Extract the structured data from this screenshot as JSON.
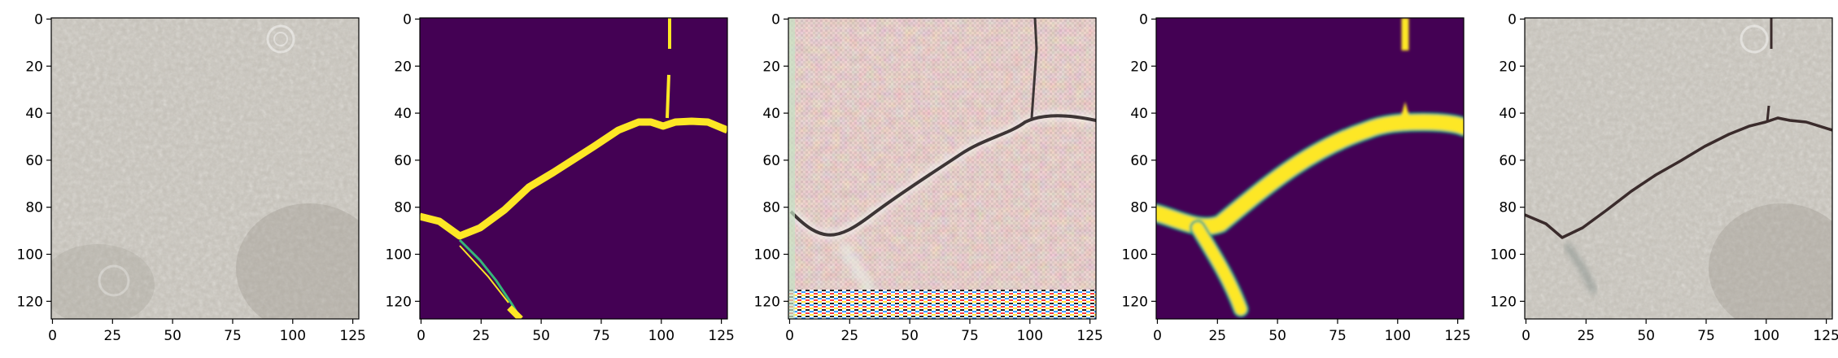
{
  "figure": {
    "panels": [
      {
        "id": "input-image",
        "content": "grayscale gravel pavement photo, faint watermark",
        "xticks": [
          "0",
          "25",
          "50",
          "75",
          "100",
          "125"
        ],
        "yticks": [
          "0",
          "20",
          "40",
          "60",
          "80",
          "100",
          "120"
        ]
      },
      {
        "id": "ground-truth-mask",
        "content": "binary crack mask, viridis colormap",
        "colors": {
          "background": "#440154",
          "crack": "#fde725",
          "edge": "#35b779"
        },
        "xticks": [
          "0",
          "25",
          "50",
          "75",
          "100",
          "125"
        ],
        "yticks": [
          "0",
          "20",
          "40",
          "60",
          "80",
          "100",
          "120"
        ]
      },
      {
        "id": "generated-image",
        "content": "reconstructed pink-tinted pavement with checkerboard artifacts",
        "xticks": [
          "0",
          "25",
          "50",
          "75",
          "100",
          "125"
        ],
        "yticks": [
          "0",
          "20",
          "40",
          "60",
          "80",
          "100",
          "120"
        ]
      },
      {
        "id": "predicted-mask",
        "content": "smooth predicted crack mask, viridis colormap",
        "colors": {
          "background": "#440154",
          "crack": "#fde725",
          "edge": "#21a585"
        },
        "xticks": [
          "0",
          "25",
          "50",
          "75",
          "100",
          "125"
        ],
        "yticks": [
          "0",
          "20",
          "40",
          "60",
          "80",
          "100",
          "120"
        ]
      },
      {
        "id": "overlay-image",
        "content": "pavement photo with dark crack overlaid",
        "xticks": [
          "0",
          "25",
          "50",
          "75",
          "100",
          "125"
        ],
        "yticks": [
          "0",
          "20",
          "40",
          "60",
          "80",
          "100",
          "120"
        ]
      }
    ]
  }
}
